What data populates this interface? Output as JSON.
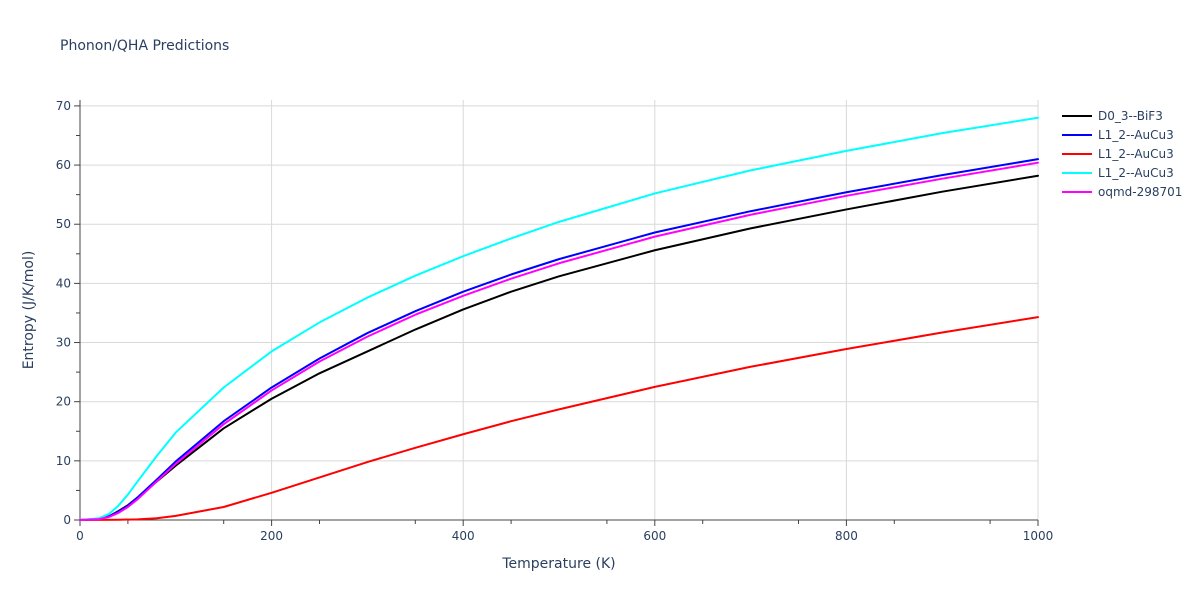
{
  "chart_data": {
    "type": "line",
    "title": "Phonon/QHA Predictions",
    "xlabel": "Temperature (K)",
    "ylabel": "Entropy (J/K/mol)",
    "xlim": [
      0,
      1000
    ],
    "ylim": [
      0,
      71
    ],
    "xticks": [
      0,
      200,
      400,
      600,
      800,
      1000
    ],
    "yticks": [
      0,
      10,
      20,
      30,
      40,
      50,
      60,
      70
    ],
    "grid": true,
    "legend_position": "top-right",
    "series": [
      {
        "name": "D0_3--BiF3",
        "color": "#000000",
        "x": [
          0,
          20,
          30,
          40,
          50,
          60,
          80,
          100,
          150,
          200,
          250,
          300,
          350,
          400,
          450,
          500,
          600,
          700,
          800,
          900,
          1000
        ],
        "y": [
          0,
          0.2,
          0.6,
          1.5,
          2.5,
          3.8,
          6.5,
          9.2,
          15.5,
          20.5,
          24.8,
          28.5,
          32.2,
          35.6,
          38.6,
          41.2,
          45.6,
          49.3,
          52.5,
          55.5,
          58.2
        ]
      },
      {
        "name": "L1_2--AuCu3",
        "color": "#0000ff",
        "x": [
          0,
          20,
          30,
          40,
          50,
          60,
          80,
          100,
          150,
          200,
          250,
          300,
          350,
          400,
          450,
          500,
          600,
          700,
          800,
          900,
          1000
        ],
        "y": [
          0,
          0.2,
          0.6,
          1.4,
          2.4,
          3.8,
          6.8,
          9.9,
          16.7,
          22.4,
          27.3,
          31.6,
          35.3,
          38.6,
          41.5,
          44.1,
          48.6,
          52.2,
          55.4,
          58.3,
          61.0
        ]
      },
      {
        "name": "L1_2--AuCu3",
        "color": "#ff0000",
        "x": [
          0,
          40,
          60,
          80,
          100,
          150,
          200,
          250,
          300,
          350,
          400,
          450,
          500,
          600,
          700,
          800,
          900,
          1000
        ],
        "y": [
          0,
          0.05,
          0.1,
          0.3,
          0.7,
          2.2,
          4.6,
          7.2,
          9.8,
          12.2,
          14.5,
          16.7,
          18.7,
          22.5,
          25.9,
          28.9,
          31.7,
          34.3
        ]
      },
      {
        "name": "L1_2--AuCu3",
        "color": "#00ffff",
        "x": [
          0,
          20,
          30,
          40,
          50,
          60,
          80,
          100,
          150,
          200,
          250,
          300,
          350,
          400,
          450,
          500,
          600,
          700,
          800,
          900,
          1000
        ],
        "y": [
          0,
          0.3,
          1.0,
          2.4,
          4.3,
          6.5,
          10.8,
          14.8,
          22.4,
          28.5,
          33.4,
          37.6,
          41.3,
          44.6,
          47.6,
          50.4,
          55.2,
          59.1,
          62.4,
          65.4,
          68.0
        ]
      },
      {
        "name": "oqmd-298701",
        "color": "#ff00ff",
        "x": [
          0,
          20,
          30,
          40,
          50,
          60,
          80,
          100,
          150,
          200,
          250,
          300,
          350,
          400,
          450,
          500,
          600,
          700,
          800,
          900,
          1000
        ],
        "y": [
          0,
          0.15,
          0.5,
          1.2,
          2.2,
          3.5,
          6.5,
          9.5,
          16.2,
          21.9,
          26.8,
          31.0,
          34.7,
          37.9,
          40.8,
          43.4,
          47.9,
          51.6,
          54.8,
          57.7,
          60.4
        ]
      }
    ]
  }
}
